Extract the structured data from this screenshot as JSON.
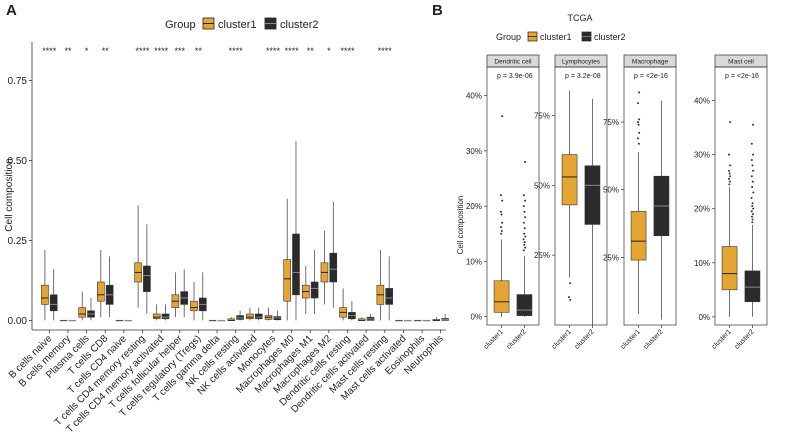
{
  "figure": {
    "panel_a_letter": "A",
    "panel_b_letter": "B",
    "legend_title": "Group",
    "group_labels": [
      "cluster1",
      "cluster2"
    ],
    "colors": {
      "cluster1": "#E5A534",
      "cluster2": "#2B2B2B",
      "panel_header": "#D9D9D9",
      "outlier": "#333333"
    }
  },
  "chart_data": [
    {
      "type": "box",
      "panel": "A",
      "title": "",
      "ylabel": "Cell composition",
      "xlabel": "",
      "ylim": [
        -0.03,
        0.87
      ],
      "yticks": [
        0.0,
        0.25,
        0.5,
        0.75
      ],
      "ytick_labels": [
        "0.00",
        "0.25",
        "0.50",
        "0.75"
      ],
      "legend": "top",
      "categories": [
        "B cells naive",
        "B cells memory",
        "Plasma cells",
        "T cells CD8",
        "T cells CD4 naive",
        "T cells CD4 memory resting",
        "T cells CD4 memory activated",
        "T cells follicular helper",
        "T cells regulatory (Tregs)",
        "T cells gamma delta",
        "NK cells resting",
        "NK cells activated",
        "Monocytes",
        "Macrophages M0",
        "Macrophages M1",
        "Macrophages M2",
        "Dendritic cells resting",
        "Dendritic cells activated",
        "Mast cells resting",
        "Mast cells activated",
        "Eosinophils",
        "Neutrophils"
      ],
      "significance": [
        "****",
        "**",
        "*",
        "**",
        "",
        "****",
        "****",
        "***",
        "**",
        "",
        "****",
        "",
        "****",
        "****",
        "**",
        "*",
        "****",
        "",
        "****",
        "",
        "",
        ""
      ],
      "series": [
        {
          "name": "cluster1",
          "boxes": [
            [
              0.0,
              0.05,
              0.07,
              0.11,
              0.22
            ],
            [
              0,
              0,
              0,
              0,
              0
            ],
            [
              0.0,
              0.01,
              0.02,
              0.04,
              0.09
            ],
            [
              0.01,
              0.06,
              0.08,
              0.12,
              0.22
            ],
            [
              0,
              0,
              0,
              0,
              0
            ],
            [
              0.04,
              0.12,
              0.15,
              0.18,
              0.36
            ],
            [
              0.0,
              0.005,
              0.01,
              0.02,
              0.05
            ],
            [
              0.01,
              0.04,
              0.06,
              0.08,
              0.15
            ],
            [
              0.0,
              0.03,
              0.04,
              0.06,
              0.12
            ],
            [
              0,
              0,
              0,
              0,
              0
            ],
            [
              0.0,
              0.0,
              0.0,
              0.005,
              0.01
            ],
            [
              0.0,
              0.005,
              0.01,
              0.02,
              0.04
            ],
            [
              0.0,
              0.003,
              0.01,
              0.015,
              0.04
            ],
            [
              0.0,
              0.06,
              0.13,
              0.19,
              0.38
            ],
            [
              0.02,
              0.07,
              0.09,
              0.11,
              0.17
            ],
            [
              0.05,
              0.12,
              0.15,
              0.18,
              0.28
            ],
            [
              0.0,
              0.01,
              0.025,
              0.04,
              0.1
            ],
            [
              0.0,
              0.0,
              0.0,
              0.005,
              0.01
            ],
            [
              0.0,
              0.05,
              0.08,
              0.11,
              0.22
            ],
            [
              0,
              0,
              0,
              0,
              0
            ],
            [
              0,
              0,
              0,
              0,
              0
            ],
            [
              0.0,
              0.0,
              0.0,
              0.003,
              0.01
            ]
          ]
        },
        {
          "name": "cluster2",
          "boxes": [
            [
              0.0,
              0.03,
              0.05,
              0.08,
              0.16
            ],
            [
              0,
              0,
              0,
              0,
              0
            ],
            [
              0.0,
              0.01,
              0.02,
              0.03,
              0.07
            ],
            [
              0.01,
              0.05,
              0.08,
              0.11,
              0.2
            ],
            [
              0,
              0,
              0,
              0,
              0
            ],
            [
              0.02,
              0.09,
              0.14,
              0.17,
              0.3
            ],
            [
              0.0,
              0.005,
              0.01,
              0.02,
              0.05
            ],
            [
              0.01,
              0.05,
              0.07,
              0.09,
              0.16
            ],
            [
              0.0,
              0.03,
              0.05,
              0.07,
              0.15
            ],
            [
              0,
              0,
              0,
              0,
              0
            ],
            [
              0.0,
              0.003,
              0.008,
              0.015,
              0.03
            ],
            [
              0.0,
              0.005,
              0.01,
              0.02,
              0.04
            ],
            [
              0.0,
              0.002,
              0.008,
              0.012,
              0.03
            ],
            [
              0.0,
              0.08,
              0.15,
              0.27,
              0.56
            ],
            [
              0.02,
              0.07,
              0.1,
              0.12,
              0.22
            ],
            [
              0.04,
              0.12,
              0.16,
              0.21,
              0.37
            ],
            [
              0.0,
              0.005,
              0.015,
              0.025,
              0.06
            ],
            [
              0.0,
              0.0,
              0.005,
              0.01,
              0.02
            ],
            [
              0.0,
              0.05,
              0.07,
              0.1,
              0.2
            ],
            [
              0,
              0,
              0,
              0,
              0
            ],
            [
              0,
              0,
              0,
              0,
              0
            ],
            [
              0.0,
              0.0,
              0.003,
              0.006,
              0.02
            ]
          ]
        }
      ]
    },
    {
      "type": "box",
      "panel": "B",
      "title": "TCGA",
      "ylabel": "Cell composition",
      "legend": "top",
      "facets": [
        {
          "name": "Dendritic cell",
          "pvalue": "p = 3.9e-06",
          "ylim": [
            -1.5,
            45
          ],
          "yticks": [
            0,
            10,
            20,
            30,
            40
          ],
          "ytick_labels": [
            "0%",
            "10%",
            "20%",
            "30%",
            "40%"
          ],
          "categories": [
            "cluster1",
            "cluster2"
          ],
          "boxes": [
            [
              0,
              0.8,
              2.7,
              6.5,
              14
            ],
            [
              0,
              0.2,
              1.2,
              4,
              11
            ]
          ],
          "outliers": [
            [
              36.3,
              22,
              21,
              19,
              18.5,
              17,
              16.2,
              15.5,
              15
            ],
            [
              28,
              22,
              21,
              20,
              19,
              18,
              17,
              16,
              15,
              14.5,
              14,
              13.5,
              13,
              12.5,
              12
            ]
          ]
        },
        {
          "name": "Lymphocytes",
          "pvalue": "p = 3.2e-08",
          "ylim": [
            0,
            92
          ],
          "yticks": [
            25,
            50,
            75
          ],
          "ytick_labels": [
            "25%",
            "50%",
            "75%"
          ],
          "categories": [
            "cluster1",
            "cluster2"
          ],
          "boxes": [
            [
              17,
              43,
              53,
              61,
              84
            ],
            [
              0,
              36,
              50,
              57,
              81
            ]
          ],
          "outliers": [
            [
              15,
              10,
              9
            ],
            []
          ]
        },
        {
          "name": "Macrophage",
          "pvalue": "p = <2e-16",
          "ylim": [
            0,
            95
          ],
          "yticks": [
            25,
            50,
            75
          ],
          "ytick_labels": [
            "25%",
            "50%",
            "75%"
          ],
          "categories": [
            "cluster1",
            "cluster2"
          ],
          "boxes": [
            [
              4,
              24,
              31,
              42,
              64
            ],
            [
              2,
              33,
              44,
              55,
              83
            ]
          ],
          "outliers": [
            [
              86,
              82,
              76,
              75,
              74,
              71,
              69,
              67
            ],
            []
          ]
        },
        {
          "name": "Mast cell",
          "pvalue": "p = <2e-16",
          "ylim": [
            -1.5,
            46
          ],
          "yticks": [
            0,
            10,
            20,
            30,
            40
          ],
          "ytick_labels": [
            "0%",
            "10%",
            "20%",
            "30%",
            "40%"
          ],
          "categories": [
            "cluster1",
            "cluster2"
          ],
          "boxes": [
            [
              0,
              5,
              8,
              13,
              24
            ],
            [
              0,
              2.8,
              5.5,
              8.5,
              17
            ]
          ],
          "outliers": [
            [
              36,
              30,
              28,
              27,
              26.5,
              26,
              25.5,
              25,
              24.5
            ],
            [
              35.5,
              32,
              30,
              29,
              28,
              27,
              26,
              25,
              24,
              23,
              22,
              21,
              20.5,
              20,
              19.5,
              19,
              18.5,
              18,
              17.5
            ]
          ]
        }
      ]
    }
  ]
}
